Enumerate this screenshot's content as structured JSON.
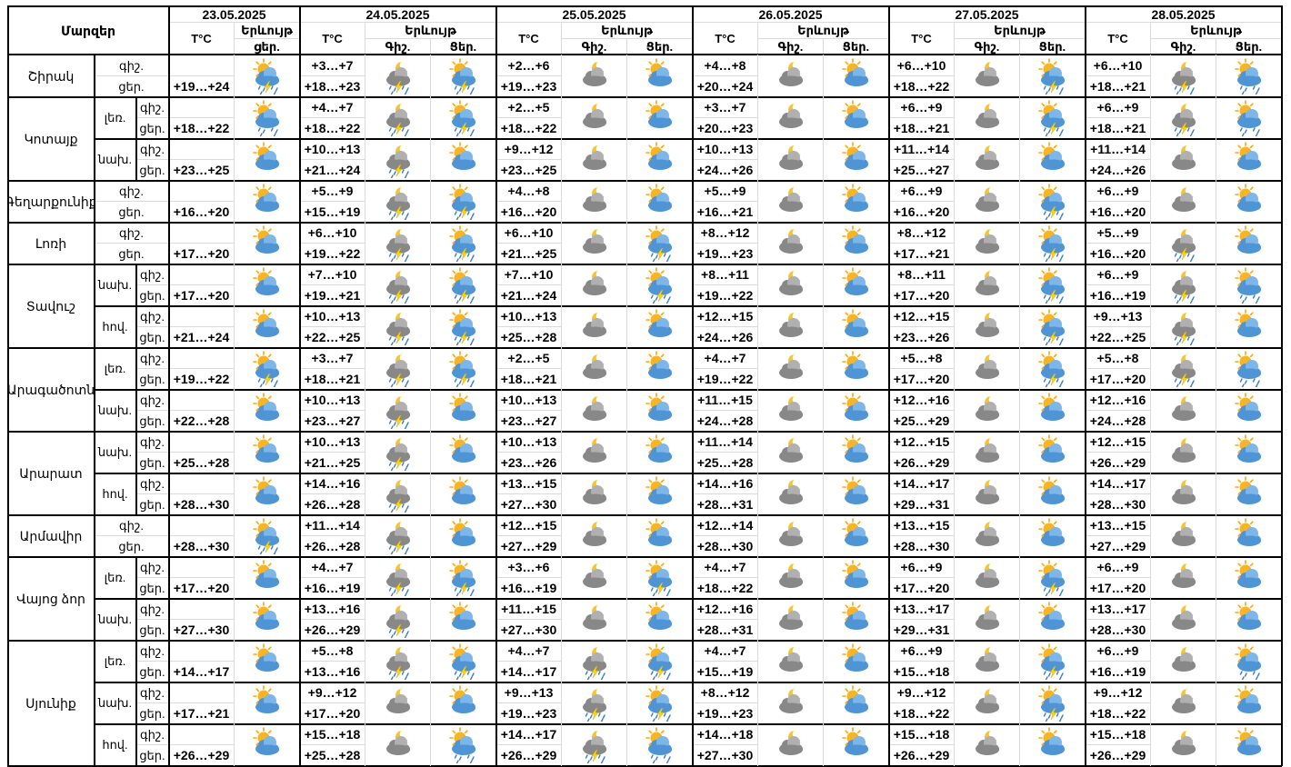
{
  "header": {
    "region_col": "Մարզեր",
    "temp_label": "T°C",
    "weather_label": "Երևույթ",
    "first_day_weather_sub": "ցեր.",
    "night_label": "Գիշ.",
    "day_label": "Ցեր."
  },
  "dates": [
    "23.05.2025",
    "24.05.2025",
    "25.05.2025",
    "26.05.2025",
    "27.05.2025",
    "28.05.2025"
  ],
  "regions": [
    {
      "name": "Շիրակ",
      "subs": [
        {
          "label": "",
          "rows": [
            {
              "tod": "գիշ.",
              "temps": [
                "",
                "+3…+7",
                "+2…+6",
                "+4…+8",
                "+6…+10",
                "+6…+10"
              ]
            },
            {
              "tod": "ցեր.",
              "temps": [
                "+19…+24",
                "+18…+23",
                "+19…+23",
                "+20…+24",
                "+18…+22",
                "+18…+21"
              ]
            }
          ],
          "icons": [
            "sun-cloud-storm",
            "moon-cloud-storm",
            "sun-cloud-storm",
            "moon-cloud",
            "sun-cloud",
            "moon-cloud",
            "sun-cloud",
            "moon-cloud",
            "sun-cloud-storm",
            "moon-cloud-storm",
            "sun-cloud-rain"
          ]
        }
      ]
    },
    {
      "name": "Կոտայք",
      "subs": [
        {
          "label": "լեռ.",
          "rows": [
            {
              "tod": "գիշ.",
              "temps": [
                "",
                "+4…+7",
                "+2…+5",
                "+3…+7",
                "+6…+9",
                "+6…+9"
              ]
            },
            {
              "tod": "ցեր.",
              "temps": [
                "+18…+22",
                "+18…+22",
                "+18…+22",
                "+20…+23",
                "+18…+21",
                "+18…+21"
              ]
            }
          ],
          "icons": [
            "sun-cloud-rain",
            "moon-cloud-storm",
            "sun-cloud-storm",
            "moon-cloud",
            "sun-cloud",
            "moon-cloud",
            "sun-cloud",
            "moon-cloud",
            "sun-cloud-storm",
            "moon-cloud-storm",
            "sun-cloud-rain"
          ]
        },
        {
          "label": "նախ.",
          "rows": [
            {
              "tod": "գիշ.",
              "temps": [
                "",
                "+10…+13",
                "+9…+12",
                "+10…+13",
                "+11…+14",
                "+11…+14"
              ]
            },
            {
              "tod": "ցեր.",
              "temps": [
                "+23…+25",
                "+21…+24",
                "+23…+25",
                "+24…+26",
                "+25…+27",
                "+24…+26"
              ]
            }
          ],
          "icons": [
            "sun-cloud",
            "moon-cloud-storm",
            "sun-cloud",
            "moon-cloud",
            "sun-cloud",
            "moon-cloud",
            "sun-cloud",
            "moon-cloud",
            "sun-cloud",
            "moon-cloud",
            "sun-cloud"
          ]
        }
      ]
    },
    {
      "name": "Գեղարքունիք",
      "subs": [
        {
          "label": "",
          "rows": [
            {
              "tod": "գիշ.",
              "temps": [
                "",
                "+5…+9",
                "+4…+8",
                "+5…+9",
                "+6…+9",
                "+6…+9"
              ]
            },
            {
              "tod": "ցեր.",
              "temps": [
                "+16…+20",
                "+15…+19",
                "+16…+20",
                "+16…+21",
                "+16…+20",
                "+16…+20"
              ]
            }
          ],
          "icons": [
            "sun-cloud",
            "moon-cloud-storm",
            "sun-cloud-storm",
            "moon-cloud",
            "sun-cloud",
            "moon-cloud",
            "sun-cloud",
            "moon-cloud",
            "sun-cloud-storm",
            "moon-cloud",
            "sun-cloud"
          ]
        }
      ]
    },
    {
      "name": "Լոռի",
      "subs": [
        {
          "label": "",
          "rows": [
            {
              "tod": "գիշ.",
              "temps": [
                "",
                "+6…+10",
                "+6…+10",
                "+8…+12",
                "+8…+12",
                "+5…+9"
              ]
            },
            {
              "tod": "ցեր.",
              "temps": [
                "+17…+20",
                "+19…+22",
                "+21…+25",
                "+19…+23",
                "+17…+21",
                "+16…+20"
              ]
            }
          ],
          "icons": [
            "sun-cloud",
            "moon-cloud-storm",
            "sun-cloud-storm",
            "moon-cloud",
            "sun-cloud-storm",
            "moon-cloud",
            "sun-cloud",
            "moon-cloud",
            "sun-cloud-storm",
            "moon-cloud-storm",
            "sun-cloud"
          ]
        }
      ]
    },
    {
      "name": "Տավուշ",
      "subs": [
        {
          "label": "նախ.",
          "rows": [
            {
              "tod": "գիշ.",
              "temps": [
                "",
                "+7…+10",
                "+7…+10",
                "+8…+11",
                "+8…+11",
                "+6…+9"
              ]
            },
            {
              "tod": "ցեր.",
              "temps": [
                "+17…+20",
                "+19…+21",
                "+21…+24",
                "+19…+22",
                "+17…+20",
                "+16…+19"
              ]
            }
          ],
          "icons": [
            "sun-cloud",
            "moon-cloud-storm",
            "sun-cloud-storm",
            "moon-cloud",
            "sun-cloud-storm",
            "moon-cloud",
            "sun-cloud",
            "moon-cloud",
            "sun-cloud-storm",
            "moon-cloud-storm",
            "sun-cloud-rain"
          ]
        },
        {
          "label": "հով.",
          "rows": [
            {
              "tod": "գիշ.",
              "temps": [
                "",
                "+10…+13",
                "+10…+13",
                "+12…+15",
                "+12…+15",
                "+9…+13"
              ]
            },
            {
              "tod": "ցեր.",
              "temps": [
                "+21…+24",
                "+22…+25",
                "+25…+28",
                "+24…+26",
                "+23…+26",
                "+22…+25"
              ]
            }
          ],
          "icons": [
            "sun-cloud",
            "moon-cloud-storm",
            "sun-cloud-storm",
            "moon-cloud",
            "sun-cloud",
            "moon-cloud",
            "sun-cloud",
            "moon-cloud",
            "sun-cloud-storm",
            "moon-cloud-storm",
            "sun-cloud"
          ]
        }
      ]
    },
    {
      "name": "Արագածոտն",
      "subs": [
        {
          "label": "լեռ.",
          "rows": [
            {
              "tod": "գիշ.",
              "temps": [
                "",
                "+3…+7",
                "+2…+5",
                "+4…+7",
                "+5…+8",
                "+5…+8"
              ]
            },
            {
              "tod": "ցեր.",
              "temps": [
                "+19…+22",
                "+18…+21",
                "+18…+21",
                "+19…+22",
                "+17…+20",
                "+17…+20"
              ]
            }
          ],
          "icons": [
            "sun-cloud-storm",
            "moon-cloud-storm",
            "sun-cloud-storm",
            "moon-cloud",
            "sun-cloud",
            "moon-cloud",
            "sun-cloud",
            "moon-cloud",
            "sun-cloud-storm",
            "moon-cloud-storm",
            "sun-cloud-rain"
          ]
        },
        {
          "label": "նախ.",
          "rows": [
            {
              "tod": "գիշ.",
              "temps": [
                "",
                "+10…+13",
                "+10…+13",
                "+11…+15",
                "+12…+16",
                "+12…+16"
              ]
            },
            {
              "tod": "ցեր.",
              "temps": [
                "+22…+28",
                "+23…+27",
                "+23…+27",
                "+24…+28",
                "+25…+29",
                "+24…+28"
              ]
            }
          ],
          "icons": [
            "sun-cloud",
            "moon-cloud-storm",
            "sun-cloud",
            "moon-cloud",
            "sun-cloud",
            "moon-cloud",
            "sun-cloud",
            "moon-cloud",
            "sun-cloud",
            "moon-cloud",
            "sun-cloud"
          ]
        }
      ]
    },
    {
      "name": "Արարատ",
      "subs": [
        {
          "label": "նախ.",
          "rows": [
            {
              "tod": "գիշ.",
              "temps": [
                "",
                "+10…+13",
                "+10…+13",
                "+11…+14",
                "+12…+15",
                "+12…+15"
              ]
            },
            {
              "tod": "ցեր.",
              "temps": [
                "+25…+28",
                "+21…+25",
                "+23…+26",
                "+25…+28",
                "+26…+29",
                "+26…+29"
              ]
            }
          ],
          "icons": [
            "sun-cloud",
            "moon-cloud-storm",
            "sun-cloud",
            "moon-cloud",
            "sun-cloud",
            "moon-cloud",
            "sun-cloud",
            "moon-cloud",
            "sun-cloud",
            "moon-cloud",
            "sun-cloud"
          ]
        },
        {
          "label": "հով.",
          "rows": [
            {
              "tod": "գիշ.",
              "temps": [
                "",
                "+14…+16",
                "+13…+15",
                "+14…+16",
                "+14…+17",
                "+14…+17"
              ]
            },
            {
              "tod": "ցեր.",
              "temps": [
                "+28…+30",
                "+26…+28",
                "+27…+30",
                "+28…+31",
                "+29…+31",
                "+28…+30"
              ]
            }
          ],
          "icons": [
            "sun-cloud",
            "moon-cloud-storm",
            "sun-cloud",
            "moon-cloud",
            "sun-cloud",
            "moon-cloud",
            "sun-cloud",
            "moon-cloud",
            "sun-cloud",
            "moon-cloud",
            "sun-cloud"
          ]
        }
      ]
    },
    {
      "name": "Արմավիր",
      "subs": [
        {
          "label": "",
          "rows": [
            {
              "tod": "գիշ.",
              "temps": [
                "",
                "+11…+14",
                "+12…+15",
                "+12…+14",
                "+13…+15",
                "+13…+15"
              ]
            },
            {
              "tod": "ցեր.",
              "temps": [
                "+28…+30",
                "+26…+28",
                "+27…+29",
                "+28…+30",
                "+28…+30",
                "+27…+29"
              ]
            }
          ],
          "icons": [
            "sun-cloud-storm",
            "moon-cloud-storm",
            "sun-cloud",
            "moon-cloud",
            "sun-cloud",
            "moon-cloud",
            "sun-cloud",
            "moon-cloud",
            "sun-cloud",
            "moon-cloud",
            "sun-cloud"
          ]
        }
      ]
    },
    {
      "name": "Վայոց ձոր",
      "subs": [
        {
          "label": "լեռ.",
          "rows": [
            {
              "tod": "գիշ.",
              "temps": [
                "",
                "+4…+7",
                "+3…+6",
                "+4…+7",
                "+6…+9",
                "+6…+9"
              ]
            },
            {
              "tod": "ցեր.",
              "temps": [
                "+17…+20",
                "+16…+19",
                "+16…+19",
                "+18…+22",
                "+17…+20",
                "+17…+20"
              ]
            }
          ],
          "icons": [
            "sun-cloud",
            "moon-cloud-storm",
            "sun-cloud-storm",
            "moon-cloud",
            "sun-cloud-storm",
            "moon-cloud",
            "sun-cloud",
            "moon-cloud",
            "sun-cloud-storm",
            "moon-cloud",
            "sun-cloud"
          ]
        },
        {
          "label": "նախ.",
          "rows": [
            {
              "tod": "գիշ.",
              "temps": [
                "",
                "+13…+16",
                "+11…+15",
                "+12…+16",
                "+13…+17",
                "+13…+17"
              ]
            },
            {
              "tod": "ցեր.",
              "temps": [
                "+27…+30",
                "+26…+29",
                "+27…+30",
                "+28…+31",
                "+29…+31",
                "+28…+30"
              ]
            }
          ],
          "icons": [
            "sun-cloud",
            "moon-cloud-storm",
            "sun-cloud",
            "moon-cloud",
            "sun-cloud",
            "moon-cloud",
            "sun-cloud",
            "moon-cloud",
            "sun-cloud",
            "moon-cloud",
            "sun-cloud"
          ]
        }
      ]
    },
    {
      "name": "Սյունիք",
      "subs": [
        {
          "label": "լեռ.",
          "rows": [
            {
              "tod": "գիշ.",
              "temps": [
                "",
                "+5…+8",
                "+4…+7",
                "+4…+7",
                "+6…+9",
                "+6…+9"
              ]
            },
            {
              "tod": "ցեր.",
              "temps": [
                "+14…+17",
                "+13…+16",
                "+14…+17",
                "+15…+19",
                "+15…+18",
                "+16…+19"
              ]
            }
          ],
          "icons": [
            "sun-cloud",
            "moon-cloud-storm",
            "sun-cloud-storm",
            "moon-cloud-storm",
            "sun-cloud-storm",
            "moon-cloud",
            "sun-cloud",
            "moon-cloud",
            "sun-cloud-storm",
            "moon-cloud",
            "sun-cloud-rain"
          ]
        },
        {
          "label": "նախ.",
          "rows": [
            {
              "tod": "գիշ.",
              "temps": [
                "",
                "+9…+12",
                "+9…+13",
                "+8…+12",
                "+9…+12",
                "+9…+12"
              ]
            },
            {
              "tod": "ցեր.",
              "temps": [
                "+17…+21",
                "+17…+20",
                "+19…+23",
                "+19…+23",
                "+18…+22",
                "+18…+22"
              ]
            }
          ],
          "icons": [
            "sun-cloud",
            "moon-cloud",
            "sun-cloud",
            "moon-cloud-storm",
            "sun-cloud-storm",
            "moon-cloud",
            "sun-cloud",
            "moon-cloud",
            "sun-cloud-storm",
            "moon-cloud",
            "sun-cloud"
          ]
        },
        {
          "label": "հով.",
          "rows": [
            {
              "tod": "գիշ.",
              "temps": [
                "",
                "+15…+18",
                "+14…+17",
                "+14…+18",
                "+15…+18",
                "+15…+18"
              ]
            },
            {
              "tod": "ցեր.",
              "temps": [
                "+26…+29",
                "+25…+28",
                "+26…+29",
                "+27…+30",
                "+26…+29",
                "+26…+29"
              ]
            }
          ],
          "icons": [
            "sun-cloud",
            "moon-cloud",
            "sun-cloud-rain",
            "moon-cloud-storm",
            "sun-cloud-rain",
            "moon-cloud",
            "sun-cloud",
            "moon-cloud",
            "sun-cloud",
            "moon-cloud",
            "sun-cloud"
          ]
        }
      ]
    }
  ],
  "colors": {
    "sun": "#F7B425",
    "sun_ray": "#FFA500",
    "cloud_blue": "#4F94D4",
    "cloud_blue_light": "#7DB6E8",
    "cloud_grey": "#888888",
    "cloud_grey_light": "#B0B0B0",
    "moon": "#F9C623",
    "bolt": "#FFD700",
    "rain": "#3A7EC8",
    "grid": "#DADADA",
    "border": "#000000"
  }
}
